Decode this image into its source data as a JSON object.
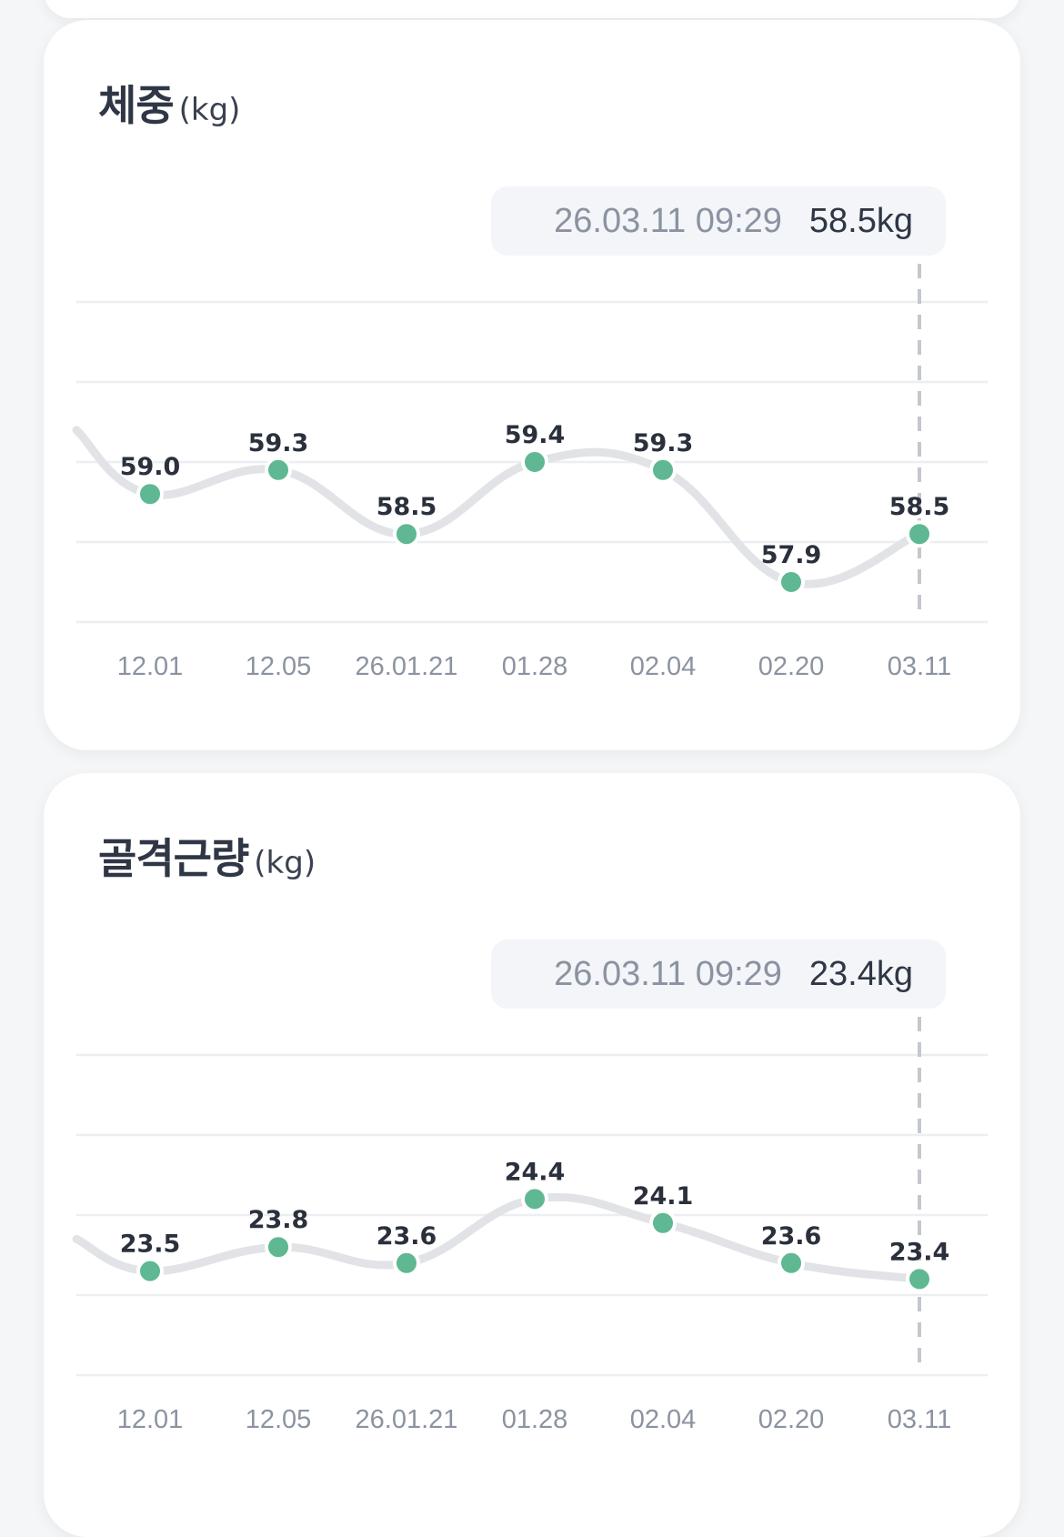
{
  "colors": {
    "point": "#5fb892",
    "line": "#e2e3e7",
    "grid": "#eceef1",
    "dash": "#c4c7cd"
  },
  "chart_data": [
    {
      "type": "line",
      "title": "체중",
      "unit": "(kg)",
      "categories": [
        "12.01",
        "12.05",
        "26.01.21",
        "01.28",
        "02.04",
        "02.20",
        "03.11"
      ],
      "values": [
        59.0,
        59.3,
        58.5,
        59.4,
        59.3,
        57.9,
        58.5
      ],
      "value_labels": [
        "59.0",
        "59.3",
        "58.5",
        "59.4",
        "59.3",
        "57.9",
        "58.5"
      ],
      "lead_in_value": 59.8,
      "ylim": [
        57.4,
        61.4
      ],
      "grid": true,
      "selected_index": 6,
      "tooltip": {
        "date": "26.03.11 09:29",
        "value": "58.5kg"
      }
    },
    {
      "type": "line",
      "title": "골격근량",
      "unit": "(kg)",
      "categories": [
        "12.01",
        "12.05",
        "26.01.21",
        "01.28",
        "02.04",
        "02.20",
        "03.11"
      ],
      "values": [
        23.5,
        23.8,
        23.6,
        24.4,
        24.1,
        23.6,
        23.4
      ],
      "value_labels": [
        "23.5",
        "23.8",
        "23.6",
        "24.4",
        "24.1",
        "23.6",
        "23.4"
      ],
      "lead_in_value": 23.9,
      "ylim": [
        22.2,
        26.2
      ],
      "grid": true,
      "selected_index": 6,
      "tooltip": {
        "date": "26.03.11 09:29",
        "value": "23.4kg"
      }
    }
  ]
}
